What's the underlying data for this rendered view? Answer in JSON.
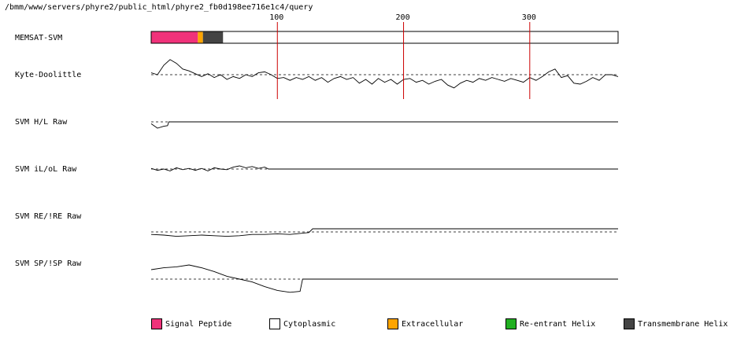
{
  "page": {
    "path": "/bmm/www/servers/phyre2/public_html/phyre2_fb0d198ee716e1c4/query"
  },
  "chart_data": {
    "type": "line",
    "x_ticks": [
      100,
      200,
      300
    ],
    "x_range": [
      0,
      370
    ],
    "tracks": [
      {
        "label": "MEMSAT-SVM",
        "kind": "topology",
        "segments": [
          {
            "start": 0,
            "end": 37,
            "type": "Signal Peptide"
          },
          {
            "start": 37,
            "end": 41,
            "type": "Extracellular"
          },
          {
            "start": 41,
            "end": 57,
            "type": "Transmembrane Helix"
          },
          {
            "start": 57,
            "end": 370,
            "type": "Cytoplasmic"
          }
        ]
      },
      {
        "label": "Kyte-Doolittle",
        "kind": "profile",
        "threshold": 0,
        "profile": [
          [
            0,
            0.2
          ],
          [
            5,
            0.0
          ],
          [
            10,
            1.0
          ],
          [
            15,
            1.6
          ],
          [
            20,
            1.2
          ],
          [
            25,
            0.6
          ],
          [
            30,
            0.4
          ],
          [
            35,
            0.1
          ],
          [
            40,
            -0.2
          ],
          [
            45,
            0.1
          ],
          [
            50,
            -0.3
          ],
          [
            55,
            0.0
          ],
          [
            60,
            -0.5
          ],
          [
            65,
            -0.2
          ],
          [
            70,
            -0.4
          ],
          [
            75,
            0.0
          ],
          [
            80,
            -0.2
          ],
          [
            85,
            0.2
          ],
          [
            90,
            0.3
          ],
          [
            95,
            0.0
          ],
          [
            100,
            -0.4
          ],
          [
            105,
            -0.3
          ],
          [
            110,
            -0.6
          ],
          [
            115,
            -0.3
          ],
          [
            120,
            -0.5
          ],
          [
            125,
            -0.2
          ],
          [
            130,
            -0.6
          ],
          [
            135,
            -0.3
          ],
          [
            140,
            -0.8
          ],
          [
            145,
            -0.4
          ],
          [
            150,
            -0.2
          ],
          [
            155,
            -0.5
          ],
          [
            160,
            -0.3
          ],
          [
            165,
            -0.9
          ],
          [
            170,
            -0.5
          ],
          [
            175,
            -1.0
          ],
          [
            180,
            -0.4
          ],
          [
            185,
            -0.8
          ],
          [
            190,
            -0.5
          ],
          [
            195,
            -1.0
          ],
          [
            200,
            -0.5
          ],
          [
            205,
            -0.4
          ],
          [
            210,
            -0.8
          ],
          [
            215,
            -0.6
          ],
          [
            220,
            -1.0
          ],
          [
            225,
            -0.7
          ],
          [
            230,
            -0.5
          ],
          [
            235,
            -1.1
          ],
          [
            240,
            -1.4
          ],
          [
            245,
            -0.9
          ],
          [
            250,
            -0.6
          ],
          [
            255,
            -0.8
          ],
          [
            260,
            -0.4
          ],
          [
            265,
            -0.6
          ],
          [
            270,
            -0.3
          ],
          [
            275,
            -0.5
          ],
          [
            280,
            -0.7
          ],
          [
            285,
            -0.4
          ],
          [
            290,
            -0.6
          ],
          [
            295,
            -0.8
          ],
          [
            300,
            -0.3
          ],
          [
            305,
            -0.6
          ],
          [
            310,
            -0.2
          ],
          [
            315,
            0.3
          ],
          [
            320,
            0.6
          ],
          [
            325,
            -0.3
          ],
          [
            330,
            -0.1
          ],
          [
            335,
            -0.9
          ],
          [
            340,
            -1.0
          ],
          [
            345,
            -0.7
          ],
          [
            350,
            -0.3
          ],
          [
            355,
            -0.6
          ],
          [
            360,
            0.0
          ],
          [
            365,
            0.0
          ],
          [
            370,
            -0.2
          ]
        ]
      },
      {
        "label": "SVM H/L Raw",
        "kind": "profile",
        "threshold": 0,
        "profile": [
          [
            0,
            -0.3
          ],
          [
            5,
            -1.0
          ],
          [
            10,
            -0.7
          ],
          [
            13,
            -0.6
          ],
          [
            14,
            0.0
          ],
          [
            370,
            0.0
          ]
        ]
      },
      {
        "label": "SVM iL/oL Raw",
        "kind": "profile",
        "threshold": 0,
        "profile": [
          [
            0,
            0.1
          ],
          [
            5,
            -0.2
          ],
          [
            10,
            0.0
          ],
          [
            15,
            -0.3
          ],
          [
            20,
            0.2
          ],
          [
            25,
            -0.1
          ],
          [
            30,
            0.1
          ],
          [
            35,
            -0.2
          ],
          [
            40,
            0.1
          ],
          [
            45,
            -0.3
          ],
          [
            50,
            0.2
          ],
          [
            55,
            0.0
          ],
          [
            60,
            -0.1
          ],
          [
            65,
            0.3
          ],
          [
            70,
            0.5
          ],
          [
            75,
            0.2
          ],
          [
            80,
            0.4
          ],
          [
            85,
            0.1
          ],
          [
            90,
            0.3
          ],
          [
            93,
            0.0
          ],
          [
            370,
            0.0
          ]
        ]
      },
      {
        "label": "SVM RE/!RE Raw",
        "kind": "profile",
        "threshold": -0.5,
        "profile": [
          [
            0,
            -0.9
          ],
          [
            10,
            -1.0
          ],
          [
            20,
            -1.2
          ],
          [
            30,
            -1.1
          ],
          [
            40,
            -1.0
          ],
          [
            50,
            -1.1
          ],
          [
            60,
            -1.2
          ],
          [
            70,
            -1.1
          ],
          [
            80,
            -0.9
          ],
          [
            90,
            -0.9
          ],
          [
            100,
            -0.8
          ],
          [
            110,
            -0.9
          ],
          [
            120,
            -0.7
          ],
          [
            125,
            -0.6
          ],
          [
            128,
            0.0
          ],
          [
            370,
            0.0
          ]
        ]
      },
      {
        "label": "SVM SP/!SP Raw",
        "kind": "profile",
        "threshold": 0,
        "profile": [
          [
            0,
            1.0
          ],
          [
            10,
            1.2
          ],
          [
            20,
            1.3
          ],
          [
            30,
            1.5
          ],
          [
            40,
            1.2
          ],
          [
            50,
            0.8
          ],
          [
            60,
            0.3
          ],
          [
            70,
            0.0
          ],
          [
            80,
            -0.3
          ],
          [
            90,
            -0.8
          ],
          [
            100,
            -1.2
          ],
          [
            110,
            -1.4
          ],
          [
            118,
            -1.3
          ],
          [
            120,
            0.0
          ],
          [
            370,
            0.0
          ]
        ]
      }
    ],
    "legend": [
      {
        "label": "Signal Peptide",
        "color": "#f0327a"
      },
      {
        "label": "Cytoplasmic",
        "color": "#ffffff"
      },
      {
        "label": "Extracellular",
        "color": "#ffa500"
      },
      {
        "label": "Re-entrant Helix",
        "color": "#22b022"
      },
      {
        "label": "Transmembrane Helix",
        "color": "#444444"
      }
    ],
    "colors": {
      "tick_line": "#cc0000",
      "axis": "#000000"
    }
  }
}
